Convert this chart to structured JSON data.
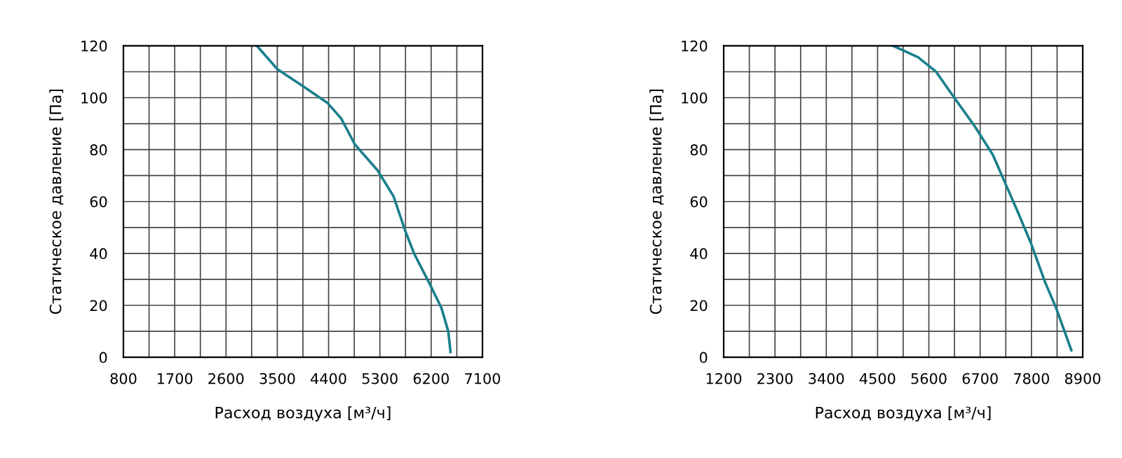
{
  "chart_data": [
    {
      "type": "line",
      "xlabel": "Расход воздуха [м³/ч]",
      "ylabel": "Статическое давление [Па]",
      "grid": true,
      "marker": "none",
      "line_style": "solid",
      "xlim": [
        800,
        7100
      ],
      "ylim": [
        0,
        120
      ],
      "xticks": [
        800,
        {
          "value": 1250,
          "label": null
        },
        1700,
        {
          "value": 2150,
          "label": null
        },
        2600,
        {
          "value": 3050,
          "label": null
        },
        3500,
        {
          "value": 3950,
          "label": null
        },
        4400,
        {
          "value": 4850,
          "label": null
        },
        5300,
        {
          "value": 5750,
          "label": null
        },
        6200,
        {
          "value": 6650,
          "label": null
        },
        7100
      ],
      "yticks": [
        0,
        {
          "value": 10,
          "label": null
        },
        20,
        {
          "value": 30,
          "label": null
        },
        40,
        {
          "value": 50,
          "label": null
        },
        60,
        {
          "value": 70,
          "label": null
        },
        80,
        {
          "value": 90,
          "label": null
        },
        100,
        {
          "value": 110,
          "label": null
        },
        120
      ],
      "series": [
        {
          "color": "#1a7f8c",
          "x": [
            3142,
            3501,
            3981,
            4381,
            4621,
            4861,
            5260,
            5540,
            5740,
            5900,
            6180,
            6380,
            6500,
            6540
          ],
          "values": [
            120,
            111,
            104,
            98,
            92,
            82,
            72,
            62,
            49,
            40,
            28,
            19,
            10,
            2
          ]
        }
      ]
    },
    {
      "type": "line",
      "xlabel": "Расход воздуха [м³/ч]",
      "ylabel": "Статическое давление [Па]",
      "grid": true,
      "marker": "none",
      "line_style": "solid",
      "xlim": [
        1200,
        8900
      ],
      "ylim": [
        0,
        120
      ],
      "xticks": [
        1200,
        {
          "value": 1750,
          "label": null
        },
        2300,
        {
          "value": 2850,
          "label": null
        },
        3400,
        {
          "value": 3950,
          "label": null
        },
        4500,
        {
          "value": 5050,
          "label": null
        },
        5600,
        {
          "value": 6150,
          "label": null
        },
        6700,
        {
          "value": 7250,
          "label": null
        },
        7800,
        {
          "value": 8350,
          "label": null
        },
        8900
      ],
      "yticks": [
        0,
        {
          "value": 10,
          "label": null
        },
        20,
        {
          "value": 30,
          "label": null
        },
        40,
        {
          "value": 50,
          "label": null
        },
        60,
        {
          "value": 70,
          "label": null
        },
        80,
        {
          "value": 90,
          "label": null
        },
        100,
        {
          "value": 110,
          "label": null
        },
        120
      ],
      "series": [
        {
          "color": "#1a7f8c",
          "x": [
            4831,
            5366,
            5755,
            6145,
            6583,
            6972,
            7215,
            7507,
            7799,
            8091,
            8335,
            8656
          ],
          "values": [
            120,
            115.6,
            110,
            100,
            89,
            78,
            68,
            56,
            43.5,
            29,
            18.7,
            2.7
          ]
        }
      ]
    }
  ]
}
